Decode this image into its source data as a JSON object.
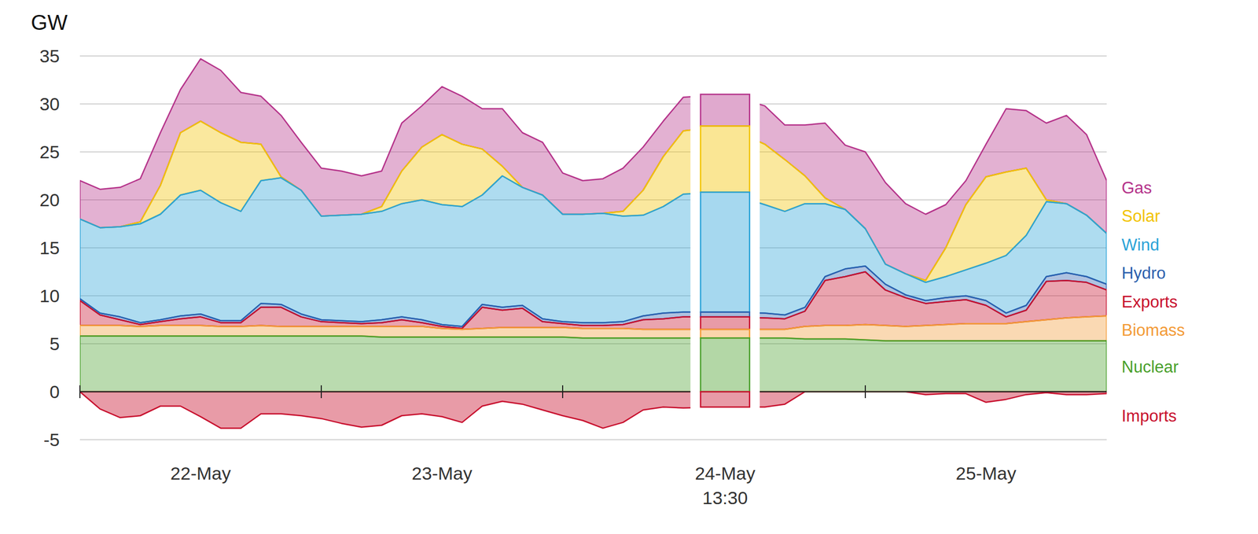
{
  "chart_data": {
    "type": "area",
    "stacked": true,
    "ylabel": "GW",
    "x": [
      0,
      2,
      4,
      6,
      8,
      10,
      12,
      14,
      16,
      18,
      20,
      22,
      24,
      26,
      28,
      30,
      32,
      34,
      36,
      38,
      40,
      42,
      44,
      46,
      48,
      50,
      52,
      54,
      56,
      58,
      60,
      61.5,
      62,
      64,
      66,
      68,
      70,
      72,
      74,
      76,
      78,
      80,
      82,
      84,
      86,
      88,
      90,
      92,
      94,
      96
    ],
    "xlim": [
      0,
      96
    ],
    "xticks": [
      {
        "value": 12,
        "label": "22-May"
      },
      {
        "value": 36,
        "label": "23-May"
      },
      {
        "value": 84,
        "label": "25-May"
      }
    ],
    "day_marks": [
      0,
      24,
      48,
      72
    ],
    "highlight": {
      "x": 61.5,
      "label": "24-May 13:30"
    },
    "ylim": [
      -5,
      35
    ],
    "yticks": [
      -5,
      0,
      5,
      10,
      15,
      20,
      25,
      30,
      35
    ],
    "grid": true,
    "legend": "right",
    "series": [
      {
        "name": "Gas",
        "color": "#b5338a",
        "values": [
          4.0,
          4.0,
          4.1,
          4.5,
          5.5,
          4.5,
          6.5,
          6.5,
          5.2,
          5.0,
          6.4,
          5.0,
          5.0,
          4.6,
          4.0,
          3.7,
          5.0,
          4.3,
          5.0,
          5.0,
          4.2,
          6.0,
          5.7,
          5.5,
          4.3,
          3.5,
          3.6,
          4.5,
          4.5,
          3.7,
          3.5,
          3.3,
          4.0,
          3.6,
          5.3,
          7.8,
          6.7,
          8.0,
          8.5,
          7.3,
          6.9,
          4.5,
          2.5,
          3.4,
          6.6,
          6.0,
          8.0,
          9.2,
          8.4,
          5.5
        ]
      },
      {
        "name": "Solar",
        "color": "#f2c300",
        "values": [
          0,
          0,
          0,
          0.2,
          3.0,
          6.5,
          7.2,
          7.3,
          7.2,
          3.8,
          0.1,
          0,
          0,
          0,
          0,
          0.5,
          3.4,
          5.5,
          7.3,
          6.5,
          4.8,
          1.0,
          0,
          0,
          0,
          0,
          0,
          0.5,
          2.6,
          5.2,
          6.6,
          6.9,
          6.3,
          5.4,
          2.9,
          0.6,
          0,
          0,
          0,
          0,
          0.2,
          3.0,
          6.8,
          9.0,
          8.7,
          7.0,
          0.2,
          0,
          0,
          0
        ]
      },
      {
        "name": "Wind",
        "color": "#2aa3d8",
        "values": [
          8.3,
          8.9,
          9.4,
          10.3,
          11.0,
          12.6,
          12.9,
          12.3,
          11.4,
          12.8,
          13.2,
          12.9,
          10.8,
          11.0,
          11.2,
          11.3,
          11.8,
          12.5,
          12.5,
          12.5,
          11.4,
          13.7,
          12.3,
          12.9,
          11.2,
          11.3,
          11.4,
          11.0,
          10.5,
          11.1,
          12.3,
          12.5,
          11.3,
          10.8,
          10.8,
          7.6,
          6.2,
          3.9,
          2.1,
          2.2,
          1.9,
          2.2,
          2.7,
          3.9,
          6.0,
          7.3,
          7.8,
          7.2,
          6.4,
          5.3
        ]
      },
      {
        "name": "Hydro",
        "color": "#2c5fae",
        "values": [
          0.2,
          0.2,
          0.3,
          0.2,
          0.2,
          0.3,
          0.3,
          0.2,
          0.2,
          0.4,
          0.3,
          0.3,
          0.2,
          0.2,
          0.2,
          0.3,
          0.3,
          0.3,
          0.2,
          0.2,
          0.3,
          0.3,
          0.3,
          0.3,
          0.2,
          0.3,
          0.3,
          0.3,
          0.4,
          0.6,
          0.5,
          0.5,
          0.5,
          0.4,
          0.4,
          0.4,
          0.8,
          0.6,
          0.6,
          0.3,
          0.3,
          0.4,
          0.4,
          0.5,
          0.4,
          0.5,
          0.5,
          0.8,
          0.6,
          0.6
        ]
      },
      {
        "name": "Exports",
        "color": "#c8102e",
        "values": [
          2.6,
          1.1,
          0.6,
          0.2,
          0.4,
          0.7,
          0.9,
          0.4,
          0.4,
          1.9,
          2.0,
          1.0,
          0.5,
          0.4,
          0.3,
          0.4,
          0.7,
          0.4,
          0.2,
          0.1,
          2.2,
          1.8,
          2.0,
          0.6,
          0.4,
          0.3,
          0.3,
          0.4,
          1.0,
          1.1,
          1.3,
          1.3,
          1.2,
          1.1,
          1.6,
          4.7,
          5.1,
          5.5,
          3.7,
          3.0,
          2.3,
          2.4,
          2.5,
          1.9,
          0.7,
          1.2,
          4.0,
          3.9,
          3.6,
          2.7
        ]
      },
      {
        "name": "Biomass",
        "color": "#f39b37",
        "values": [
          1.1,
          1.1,
          1.1,
          1.0,
          1.1,
          1.1,
          1.1,
          1.0,
          1.0,
          1.1,
          1.0,
          1.0,
          1.0,
          1.0,
          1.0,
          1.1,
          1.1,
          1.1,
          0.9,
          0.8,
          0.9,
          1.0,
          1.0,
          1.0,
          1.0,
          1.0,
          1.0,
          1.0,
          0.9,
          0.9,
          0.9,
          0.9,
          0.9,
          0.9,
          1.3,
          1.4,
          1.4,
          1.6,
          1.6,
          1.5,
          1.6,
          1.7,
          1.8,
          1.8,
          1.8,
          2.0,
          2.2,
          2.4,
          2.5,
          2.6
        ]
      },
      {
        "name": "Nuclear",
        "color": "#4aa02c",
        "values": [
          5.8,
          5.8,
          5.8,
          5.8,
          5.8,
          5.8,
          5.8,
          5.8,
          5.8,
          5.8,
          5.8,
          5.8,
          5.8,
          5.8,
          5.8,
          5.7,
          5.7,
          5.7,
          5.7,
          5.7,
          5.7,
          5.7,
          5.7,
          5.7,
          5.7,
          5.6,
          5.6,
          5.6,
          5.6,
          5.6,
          5.6,
          5.6,
          5.6,
          5.6,
          5.5,
          5.5,
          5.5,
          5.4,
          5.3,
          5.3,
          5.3,
          5.3,
          5.3,
          5.3,
          5.3,
          5.3,
          5.3,
          5.3,
          5.3,
          5.3
        ]
      },
      {
        "name": "Imports",
        "color": "#c8102e",
        "values": [
          0,
          -1.8,
          -2.7,
          -2.5,
          -1.5,
          -1.5,
          -2.6,
          -3.8,
          -3.8,
          -2.3,
          -2.3,
          -2.5,
          -2.8,
          -3.3,
          -3.7,
          -3.5,
          -2.5,
          -2.3,
          -2.6,
          -3.2,
          -1.5,
          -1.0,
          -1.3,
          -1.9,
          -2.5,
          -3.0,
          -3.8,
          -3.2,
          -1.9,
          -1.6,
          -1.7,
          -1.6,
          -1.6,
          -1.3,
          0,
          0,
          0,
          0,
          0,
          0,
          -0.3,
          -0.2,
          -0.2,
          -1.1,
          -0.8,
          -0.3,
          -0.1,
          -0.3,
          -0.3,
          -0.2
        ]
      }
    ]
  }
}
